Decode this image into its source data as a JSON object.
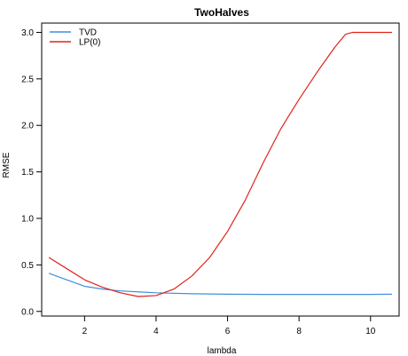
{
  "chart_data": {
    "type": "line",
    "title": "TwoHalves",
    "xlabel": "lambda",
    "ylabel": "RMSE",
    "xlim": [
      0.8,
      10.8
    ],
    "ylim": [
      -0.05,
      3.1
    ],
    "xticks": [
      2,
      4,
      6,
      8,
      10
    ],
    "yticks": [
      0.0,
      0.5,
      1.0,
      1.5,
      2.0,
      2.5,
      3.0
    ],
    "xtick_labels": [
      "2",
      "4",
      "6",
      "8",
      "10"
    ],
    "ytick_labels": [
      "0.0",
      "0.5",
      "1.0",
      "1.5",
      "2.0",
      "2.5",
      "3.0"
    ],
    "grid": false,
    "legend_position": "top-left",
    "series": [
      {
        "name": "TVD",
        "color": "#3f8fdc",
        "x": [
          1.0,
          1.5,
          2.0,
          2.5,
          3.0,
          3.5,
          4.0,
          5.0,
          6.0,
          7.0,
          8.0,
          9.0,
          10.0,
          10.6
        ],
        "y": [
          0.41,
          0.34,
          0.27,
          0.24,
          0.22,
          0.21,
          0.2,
          0.19,
          0.185,
          0.183,
          0.183,
          0.183,
          0.183,
          0.185
        ]
      },
      {
        "name": "LP(0)",
        "color": "#e0231c",
        "x": [
          1.0,
          1.5,
          2.0,
          2.5,
          3.0,
          3.5,
          4.0,
          4.5,
          5.0,
          5.5,
          6.0,
          6.5,
          7.0,
          7.5,
          8.0,
          8.5,
          9.0,
          9.3,
          9.5,
          10.0,
          10.6
        ],
        "y": [
          0.58,
          0.46,
          0.34,
          0.26,
          0.2,
          0.16,
          0.17,
          0.24,
          0.38,
          0.58,
          0.86,
          1.2,
          1.6,
          1.97,
          2.28,
          2.57,
          2.84,
          2.98,
          3.0,
          3.0,
          3.0
        ]
      }
    ]
  }
}
